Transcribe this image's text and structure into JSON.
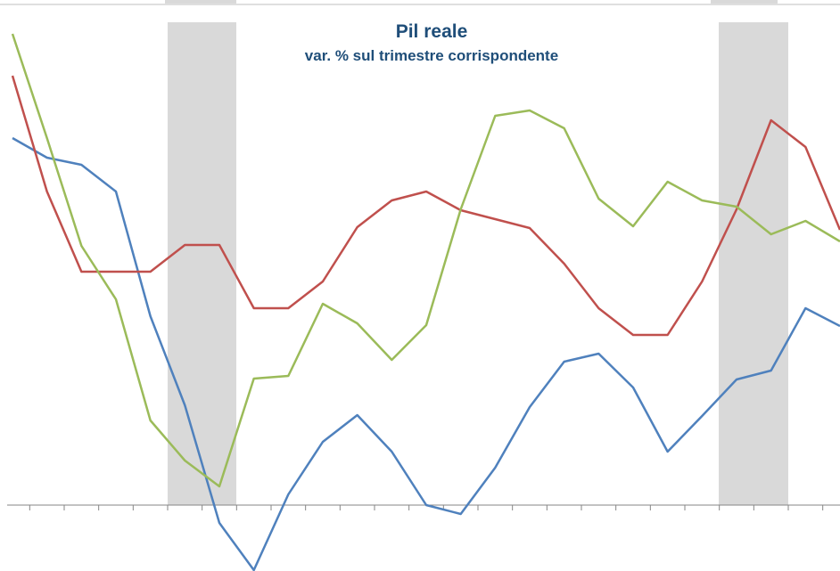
{
  "chart_data": {
    "type": "line",
    "title": "Pil reale",
    "subtitle": "var. % sul trimestre corrispondente",
    "categories": [
      null,
      null,
      null,
      null,
      null,
      null,
      null,
      null,
      null,
      null,
      null,
      null,
      null,
      null,
      null,
      null,
      null,
      null,
      null,
      null,
      null,
      null,
      null,
      null,
      null
    ],
    "series": [
      {
        "color": "#4f81bd",
        "values": [
          4.12,
          3.9,
          3.82,
          3.52,
          2.12,
          1.12,
          -0.2,
          -0.73,
          0.12,
          0.71,
          1.01,
          0.6,
          0.0,
          -0.1,
          0.42,
          1.1,
          1.61,
          1.7,
          1.32,
          0.6,
          1.0,
          1.41,
          1.51,
          2.21,
          2.01
        ]
      },
      {
        "color": "#c0504d",
        "values": [
          4.82,
          3.52,
          2.62,
          2.62,
          2.62,
          2.92,
          2.92,
          2.21,
          2.21,
          2.51,
          3.12,
          3.42,
          3.52,
          3.31,
          3.21,
          3.11,
          2.71,
          2.21,
          1.91,
          1.91,
          2.51,
          3.32,
          4.32,
          4.02,
          3.09
        ]
      },
      {
        "color": "#9bbb59",
        "values": [
          5.29,
          4.12,
          2.91,
          2.31,
          0.95,
          0.5,
          0.21,
          1.42,
          1.45,
          2.26,
          2.04,
          1.63,
          2.02,
          3.32,
          4.37,
          4.43,
          4.23,
          3.44,
          3.13,
          3.63,
          3.42,
          3.35,
          3.04,
          3.19,
          2.96
        ]
      }
    ],
    "ylim": [
      -0.74,
      5.67
    ]
  }
}
